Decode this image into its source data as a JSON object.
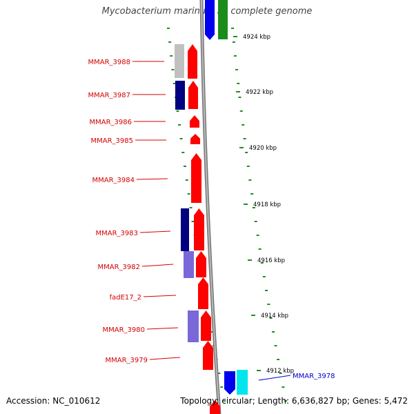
{
  "title": "Mycobacterium marinum M, complete genome",
  "footer": {
    "accession_label": "Accession:",
    "accession": "NC_010612",
    "topology_label": "Topology:",
    "topology": "circular",
    "length_label": "Length:",
    "length": "6,636,827 bp",
    "genes_label": "Genes:",
    "genes": "5,472"
  },
  "ticks": [
    "4924 kbp",
    "4922 kbp",
    "4920 kbp",
    "4918 kbp",
    "4916 kbp",
    "4914 kbp",
    "4912 kbp"
  ],
  "genes": [
    {
      "label": "MMAR_3988",
      "color": "#d40000"
    },
    {
      "label": "MMAR_3987",
      "color": "#d40000"
    },
    {
      "label": "MMAR_3986",
      "color": "#d40000"
    },
    {
      "label": "MMAR_3985",
      "color": "#d40000"
    },
    {
      "label": "MMAR_3984",
      "color": "#d40000"
    },
    {
      "label": "MMAR_3983",
      "color": "#d40000"
    },
    {
      "label": "MMAR_3982",
      "color": "#d40000"
    },
    {
      "label": "fadE17_2",
      "color": "#d40000"
    },
    {
      "label": "MMAR_3980",
      "color": "#d40000"
    },
    {
      "label": "MMAR_3979",
      "color": "#d40000"
    },
    {
      "label": "MMAR_3978",
      "color": "#0000cc"
    }
  ],
  "colors": {
    "forward_gene": "#ff0000",
    "reverse_gene": "#0000ee",
    "backbone": "#999999",
    "tick_dash": "#228b22",
    "cog_dark_blue": "#000080",
    "cog_light_purple": "#7b68d8",
    "cog_gray": "#c0c0c0",
    "cog_green": "#1a8c1a",
    "cog_cyan": "#00e5ee"
  }
}
